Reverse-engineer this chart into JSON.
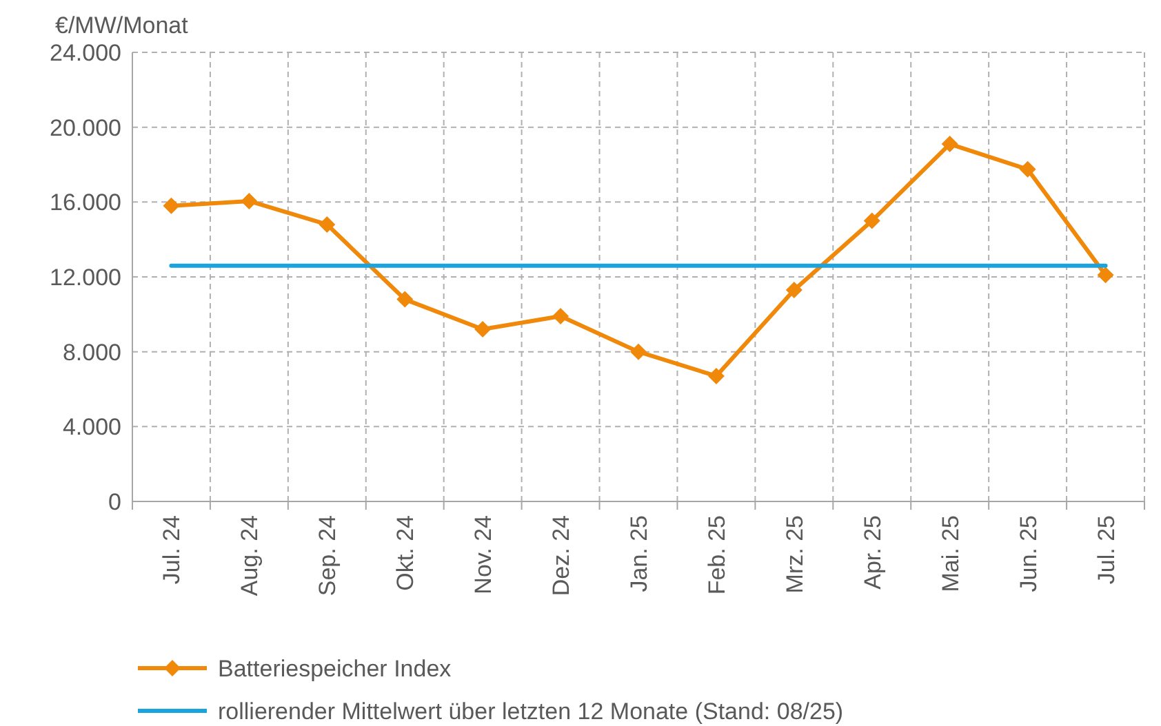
{
  "chart_data": {
    "type": "line",
    "ylabel": "€/MW/Monat",
    "categories": [
      "Jul. 24",
      "Aug. 24",
      "Sep. 24",
      "Okt. 24",
      "Nov. 24",
      "Dez. 24",
      "Jan. 25",
      "Feb. 25",
      "Mrz. 25",
      "Apr. 25",
      "Mai. 25",
      "Jun. 25",
      "Jul. 25"
    ],
    "series": [
      {
        "name": "Batteriespeicher Index",
        "color": "#f0880a",
        "marker": "diamond",
        "values": [
          15800,
          16050,
          14800,
          10800,
          9200,
          9900,
          8000,
          6700,
          11300,
          15000,
          19100,
          17750,
          12100
        ]
      },
      {
        "name": "rollierender Mittelwert über letzten 12 Monate (Stand: 08/25)",
        "color": "#1aa3dc",
        "marker": "none",
        "values": [
          12600,
          12600,
          12600,
          12600,
          12600,
          12600,
          12600,
          12600,
          12600,
          12600,
          12600,
          12600,
          12600
        ]
      }
    ],
    "ylim": [
      0,
      24000
    ],
    "yticks": [
      {
        "value": 0,
        "label": "0"
      },
      {
        "value": 4000,
        "label": "4.000"
      },
      {
        "value": 8000,
        "label": "8.000"
      },
      {
        "value": 12000,
        "label": "12.000"
      },
      {
        "value": 16000,
        "label": "16.000"
      },
      {
        "value": 20000,
        "label": "20.000"
      },
      {
        "value": 24000,
        "label": "24.000"
      }
    ],
    "grid": true,
    "legend": "bottom",
    "line_style": "solid"
  }
}
